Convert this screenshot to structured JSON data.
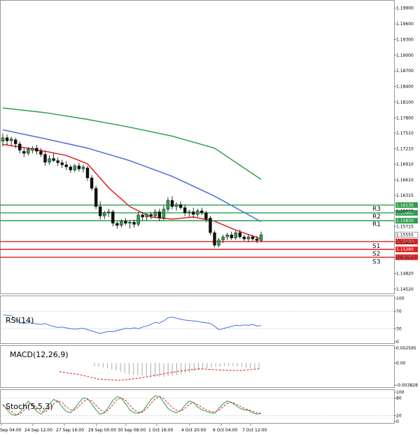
{
  "chart_data": {
    "type": "candlestick",
    "price_axis": {
      "ylim": [
        1.1445,
        1.1995
      ],
      "ticks": [
        "1.19900",
        "1.19600",
        "1.19300",
        "1.19000",
        "1.18700",
        "1.18400",
        "1.18100",
        "1.17800",
        "1.17510",
        "1.17210",
        "1.16910",
        "1.16610",
        "1.16315",
        "1.16015",
        "1.15715",
        "1.15415",
        "1.15120",
        "1.14820",
        "1.14520"
      ]
    },
    "time_labels": [
      "Sep 04:00",
      "24 Sep 12:00",
      "27 Sep 16:00",
      "29 Sep 00:00",
      "30 Sep 08:00",
      "1 Oct 16:00",
      "4 Oct 20:00",
      "6 Oct 04:00",
      "7 Oct 12:00"
    ],
    "candles": [
      {
        "o": 1.1735,
        "h": 1.175,
        "l": 1.1725,
        "c": 1.1742
      },
      {
        "o": 1.1742,
        "h": 1.1748,
        "l": 1.1728,
        "c": 1.1736
      },
      {
        "o": 1.1736,
        "h": 1.1744,
        "l": 1.1726,
        "c": 1.174
      },
      {
        "o": 1.1738,
        "h": 1.1742,
        "l": 1.1722,
        "c": 1.173
      },
      {
        "o": 1.173,
        "h": 1.1735,
        "l": 1.1712,
        "c": 1.1718
      },
      {
        "o": 1.1716,
        "h": 1.1722,
        "l": 1.1705,
        "c": 1.1712
      },
      {
        "o": 1.1712,
        "h": 1.1724,
        "l": 1.1708,
        "c": 1.172
      },
      {
        "o": 1.1718,
        "h": 1.1726,
        "l": 1.1712,
        "c": 1.1722
      },
      {
        "o": 1.1722,
        "h": 1.1728,
        "l": 1.171,
        "c": 1.1716
      },
      {
        "o": 1.1716,
        "h": 1.1722,
        "l": 1.1705,
        "c": 1.171
      },
      {
        "o": 1.171,
        "h": 1.1716,
        "l": 1.1688,
        "c": 1.1695
      },
      {
        "o": 1.1695,
        "h": 1.1708,
        "l": 1.169,
        "c": 1.1702
      },
      {
        "o": 1.1702,
        "h": 1.1712,
        "l": 1.1696,
        "c": 1.1698
      },
      {
        "o": 1.1698,
        "h": 1.1704,
        "l": 1.1688,
        "c": 1.1694
      },
      {
        "o": 1.1694,
        "h": 1.17,
        "l": 1.1684,
        "c": 1.169
      },
      {
        "o": 1.169,
        "h": 1.1697,
        "l": 1.168,
        "c": 1.1686
      },
      {
        "o": 1.1686,
        "h": 1.169,
        "l": 1.1675,
        "c": 1.168
      },
      {
        "o": 1.168,
        "h": 1.1692,
        "l": 1.1676,
        "c": 1.1688
      },
      {
        "o": 1.1688,
        "h": 1.1694,
        "l": 1.1677,
        "c": 1.1682
      },
      {
        "o": 1.1682,
        "h": 1.169,
        "l": 1.1675,
        "c": 1.1686
      },
      {
        "o": 1.1684,
        "h": 1.1688,
        "l": 1.166,
        "c": 1.1665
      },
      {
        "o": 1.1665,
        "h": 1.167,
        "l": 1.164,
        "c": 1.1645
      },
      {
        "o": 1.1645,
        "h": 1.165,
        "l": 1.1605,
        "c": 1.161
      },
      {
        "o": 1.161,
        "h": 1.162,
        "l": 1.1585,
        "c": 1.1592
      },
      {
        "o": 1.1592,
        "h": 1.1602,
        "l": 1.1586,
        "c": 1.1598
      },
      {
        "o": 1.1598,
        "h": 1.1606,
        "l": 1.159,
        "c": 1.16
      },
      {
        "o": 1.16,
        "h": 1.1604,
        "l": 1.1572,
        "c": 1.1578
      },
      {
        "o": 1.1578,
        "h": 1.1582,
        "l": 1.1568,
        "c": 1.1574
      },
      {
        "o": 1.1574,
        "h": 1.1586,
        "l": 1.157,
        "c": 1.1582
      },
      {
        "o": 1.1582,
        "h": 1.1588,
        "l": 1.1574,
        "c": 1.1578
      },
      {
        "o": 1.1578,
        "h": 1.1584,
        "l": 1.1568,
        "c": 1.158
      },
      {
        "o": 1.158,
        "h": 1.1585,
        "l": 1.157,
        "c": 1.1576
      },
      {
        "o": 1.1576,
        "h": 1.16,
        "l": 1.1572,
        "c": 1.1594
      },
      {
        "o": 1.1594,
        "h": 1.16,
        "l": 1.1584,
        "c": 1.159
      },
      {
        "o": 1.159,
        "h": 1.1598,
        "l": 1.1584,
        "c": 1.1595
      },
      {
        "o": 1.1595,
        "h": 1.16,
        "l": 1.1586,
        "c": 1.1592
      },
      {
        "o": 1.1592,
        "h": 1.1605,
        "l": 1.1588,
        "c": 1.16
      },
      {
        "o": 1.16,
        "h": 1.1606,
        "l": 1.1582,
        "c": 1.1588
      },
      {
        "o": 1.1588,
        "h": 1.1612,
        "l": 1.1584,
        "c": 1.1605
      },
      {
        "o": 1.1605,
        "h": 1.1628,
        "l": 1.16,
        "c": 1.1622
      },
      {
        "o": 1.1622,
        "h": 1.163,
        "l": 1.1605,
        "c": 1.161
      },
      {
        "o": 1.161,
        "h": 1.1618,
        "l": 1.1602,
        "c": 1.1614
      },
      {
        "o": 1.1614,
        "h": 1.162,
        "l": 1.1604,
        "c": 1.1608
      },
      {
        "o": 1.1608,
        "h": 1.1614,
        "l": 1.1592,
        "c": 1.1598
      },
      {
        "o": 1.1598,
        "h": 1.1604,
        "l": 1.159,
        "c": 1.16
      },
      {
        "o": 1.16,
        "h": 1.1608,
        "l": 1.1588,
        "c": 1.1595
      },
      {
        "o": 1.1595,
        "h": 1.1606,
        "l": 1.159,
        "c": 1.1602
      },
      {
        "o": 1.1602,
        "h": 1.1608,
        "l": 1.1594,
        "c": 1.1598
      },
      {
        "o": 1.1598,
        "h": 1.1602,
        "l": 1.158,
        "c": 1.1586
      },
      {
        "o": 1.1588,
        "h": 1.1592,
        "l": 1.1555,
        "c": 1.156
      },
      {
        "o": 1.156,
        "h": 1.1564,
        "l": 1.1532,
        "c": 1.1536
      },
      {
        "o": 1.1536,
        "h": 1.155,
        "l": 1.1532,
        "c": 1.1546
      },
      {
        "o": 1.1546,
        "h": 1.1556,
        "l": 1.154,
        "c": 1.1552
      },
      {
        "o": 1.1552,
        "h": 1.156,
        "l": 1.1546,
        "c": 1.1556
      },
      {
        "o": 1.1556,
        "h": 1.1562,
        "l": 1.1546,
        "c": 1.155
      },
      {
        "o": 1.155,
        "h": 1.1564,
        "l": 1.1546,
        "c": 1.156
      },
      {
        "o": 1.156,
        "h": 1.1566,
        "l": 1.1548,
        "c": 1.1552
      },
      {
        "o": 1.1552,
        "h": 1.1556,
        "l": 1.1544,
        "c": 1.1548
      },
      {
        "o": 1.1548,
        "h": 1.1556,
        "l": 1.1542,
        "c": 1.1552
      },
      {
        "o": 1.1552,
        "h": 1.1556,
        "l": 1.1544,
        "c": 1.1548
      },
      {
        "o": 1.1548,
        "h": 1.1554,
        "l": 1.154,
        "c": 1.1545
      },
      {
        "o": 1.1545,
        "h": 1.1562,
        "l": 1.1542,
        "c": 1.1556
      }
    ],
    "moving_averages": [
      {
        "color": "#2e9e4f",
        "points": [
          [
            0,
            1.1799
          ],
          [
            10,
            1.179
          ],
          [
            20,
            1.1777
          ],
          [
            30,
            1.1762
          ],
          [
            40,
            1.1745
          ],
          [
            50,
            1.1722
          ],
          [
            61,
            1.1662
          ]
        ]
      },
      {
        "color": "#4a6fd8",
        "points": [
          [
            0,
            1.1757
          ],
          [
            10,
            1.174
          ],
          [
            20,
            1.1722
          ],
          [
            30,
            1.1698
          ],
          [
            40,
            1.1668
          ],
          [
            50,
            1.163
          ],
          [
            61,
            1.1581
          ]
        ]
      },
      {
        "color": "#e02020",
        "points": [
          [
            0,
            1.1729
          ],
          [
            5,
            1.1723
          ],
          [
            10,
            1.1716
          ],
          [
            15,
            1.1708
          ],
          [
            20,
            1.1692
          ],
          [
            25,
            1.1646
          ],
          [
            30,
            1.161
          ],
          [
            35,
            1.159
          ],
          [
            40,
            1.1586
          ],
          [
            45,
            1.159
          ],
          [
            50,
            1.1582
          ],
          [
            55,
            1.1565
          ],
          [
            61,
            1.1548
          ]
        ]
      }
    ],
    "levels": [
      {
        "name": "R3",
        "value": 1.1613,
        "color": "#2e9e4f"
      },
      {
        "name": "R2",
        "value": 1.1598,
        "color": "#2e9e4f"
      },
      {
        "name": "R1",
        "value": 1.1583,
        "color": "#2e9e4f"
      },
      {
        "name": "S1",
        "value": 1.1543,
        "color": "#e02020"
      },
      {
        "name": "S2",
        "value": 1.1528,
        "color": "#e02020"
      },
      {
        "name": "S3",
        "value": 1.1513,
        "color": "#e02020"
      }
    ],
    "current_price": {
      "value": 1.15555,
      "label": "1.15555"
    },
    "level_tags": [
      "1.16130",
      "1.15980",
      "1.15830",
      "1.15430",
      "1.15280",
      "1.15130"
    ],
    "rsi": {
      "name": "RSI(14)",
      "ticks": [
        "100",
        "70",
        "30",
        "0"
      ],
      "values": [
        62,
        61,
        60,
        52,
        45,
        42,
        44,
        43,
        41,
        40,
        42,
        38,
        35,
        33,
        34,
        32,
        30,
        29,
        30,
        31,
        28,
        25,
        22,
        19,
        22,
        24,
        23,
        26,
        28,
        31,
        30,
        32,
        30,
        34,
        36,
        40,
        45,
        43,
        48,
        55,
        57,
        54,
        52,
        50,
        49,
        48,
        47,
        45,
        44,
        42,
        36,
        28,
        30,
        33,
        35,
        38,
        37,
        39,
        38,
        40,
        36,
        38
      ]
    },
    "macd": {
      "name": "MACD(12,26,9)",
      "ticks": [
        "0.002595",
        "0.00",
        "-0.003828"
      ],
      "histogram": [
        -0.0006,
        -0.0007,
        -0.0008,
        -0.0009,
        -0.0011,
        -0.0013,
        -0.0015,
        -0.0017,
        -0.0019,
        -0.002,
        -0.0021,
        -0.0022,
        -0.0023,
        -0.0024,
        -0.0024,
        -0.0024,
        -0.0024,
        -0.0023,
        -0.0022,
        -0.0021,
        -0.002,
        -0.0018,
        -0.0016,
        -0.0014,
        -0.0012,
        -0.0011,
        -0.0009,
        -0.0008,
        -0.0007,
        -0.0006,
        -0.0005,
        -0.0005,
        -0.0005,
        -0.0006,
        -0.0007,
        -0.0008,
        -0.0009,
        -0.001,
        -0.0011
      ],
      "signal": [
        -0.0015,
        -0.002,
        -0.0028,
        -0.003,
        -0.0026,
        -0.002,
        -0.0014,
        -0.001,
        -0.0012,
        -0.0013,
        -0.001
      ]
    },
    "stoch": {
      "name": "Stoch(5,5,3)",
      "ticks": [
        "100",
        "80",
        "20",
        "0"
      ],
      "k": [
        60,
        40,
        25,
        20,
        30,
        50,
        70,
        55,
        35,
        25,
        40,
        60,
        75,
        70,
        50,
        35,
        30,
        45,
        65,
        80,
        78,
        60,
        40,
        25,
        30,
        50,
        72,
        85,
        80,
        60,
        40,
        30,
        28,
        35,
        55,
        75,
        88,
        85,
        65,
        45,
        35,
        30,
        38,
        55,
        70,
        65,
        50,
        40,
        35,
        30,
        28,
        45,
        60,
        70,
        65,
        55,
        45,
        40,
        38,
        30,
        25,
        28
      ],
      "d": [
        55,
        48,
        35,
        25,
        25,
        38,
        55,
        60,
        48,
        35,
        32,
        45,
        60,
        70,
        65,
        50,
        40,
        40,
        52,
        68,
        75,
        70,
        55,
        40,
        32,
        40,
        58,
        75,
        80,
        72,
        55,
        40,
        32,
        32,
        45,
        62,
        78,
        85,
        78,
        62,
        48,
        38,
        35,
        45,
        58,
        65,
        58,
        48,
        40,
        35,
        32,
        38,
        50,
        62,
        66,
        60,
        52,
        45,
        40,
        35,
        30,
        28
      ]
    }
  }
}
